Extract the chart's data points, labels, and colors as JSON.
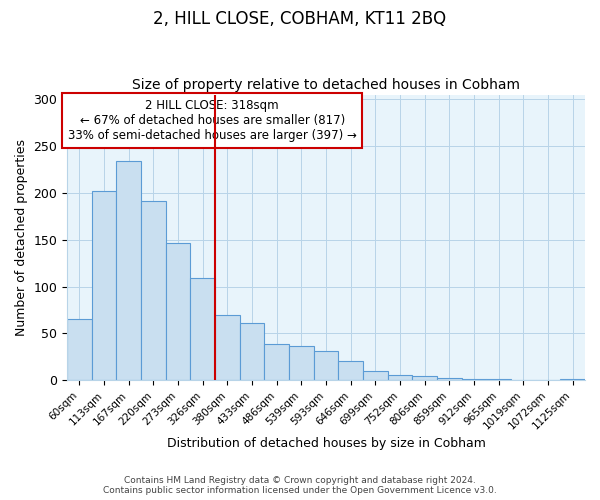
{
  "title": "2, HILL CLOSE, COBHAM, KT11 2BQ",
  "subtitle": "Size of property relative to detached houses in Cobham",
  "xlabel": "Distribution of detached houses by size in Cobham",
  "ylabel": "Number of detached properties",
  "bar_labels": [
    "60sqm",
    "113sqm",
    "167sqm",
    "220sqm",
    "273sqm",
    "326sqm",
    "380sqm",
    "433sqm",
    "486sqm",
    "539sqm",
    "593sqm",
    "646sqm",
    "699sqm",
    "752sqm",
    "806sqm",
    "859sqm",
    "912sqm",
    "965sqm",
    "1019sqm",
    "1072sqm",
    "1125sqm"
  ],
  "bar_values": [
    65,
    202,
    234,
    191,
    146,
    109,
    70,
    61,
    39,
    37,
    31,
    20,
    10,
    5,
    4,
    2,
    1,
    1,
    0,
    0,
    1
  ],
  "bar_color": "#c9dff0",
  "bar_edge_color": "#5b9bd5",
  "vline_x": 5.5,
  "vline_color": "#cc0000",
  "annotation_text": "2 HILL CLOSE: 318sqm\n← 67% of detached houses are smaller (817)\n33% of semi-detached houses are larger (397) →",
  "annotation_box_color": "#ffffff",
  "annotation_box_edge": "#cc0000",
  "ylim": [
    0,
    305
  ],
  "yticks": [
    0,
    50,
    100,
    150,
    200,
    250,
    300
  ],
  "footer_line1": "Contains HM Land Registry data © Crown copyright and database right 2024.",
  "footer_line2": "Contains public sector information licensed under the Open Government Licence v3.0.",
  "plot_background": "#e8f4fb",
  "fig_background": "#ffffff",
  "title_fontsize": 12,
  "subtitle_fontsize": 10
}
